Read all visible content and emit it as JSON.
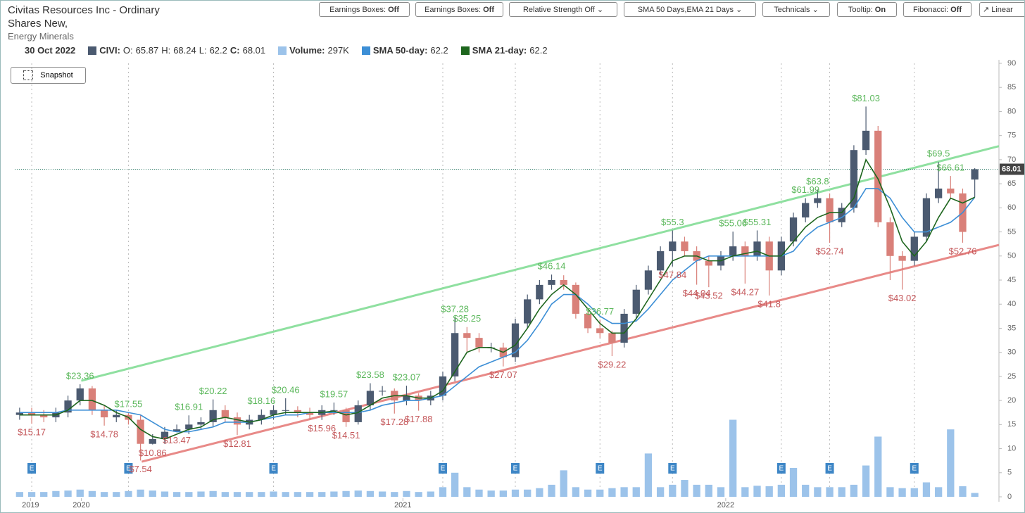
{
  "toolbar": [
    {
      "label": "Earnings Boxes:",
      "state": "Off"
    },
    {
      "label": "Earnings Boxes:",
      "state": "Off"
    },
    {
      "label": "Relative Strength Off"
    },
    {
      "label": "SMA 50 Days,EMA 21 Days"
    },
    {
      "label": "Technicals"
    },
    {
      "label": "Tooltip:",
      "state": "On"
    },
    {
      "label": "Fibonacci:",
      "state": "Off"
    },
    {
      "label": "Linear"
    }
  ],
  "snapshot": "Snapshot",
  "chart_data": {
    "type": "candlestick",
    "title": "Civitas Resources Inc - Ordinary Shares New,",
    "subtitle": "Energy Minerals",
    "date": "30 Oct 2022",
    "symbol": "CIVI:",
    "ohlc_labels": {
      "open": "O:",
      "high": "H:",
      "low": "L:",
      "close": "C:"
    },
    "up_color": "#4b5a70",
    "down_color": "#d98079",
    "open": [
      17,
      17.5,
      17,
      16.5,
      17.5,
      20,
      22.5,
      18,
      16.5,
      17,
      16,
      11,
      12,
      13.5,
      14,
      15,
      15.5,
      18,
      16.5,
      15,
      16,
      17,
      18,
      18,
      17.5,
      17,
      18,
      18,
      15.5,
      19,
      22,
      22,
      20,
      21,
      20,
      21,
      25,
      34,
      33,
      31,
      31,
      29,
      36,
      41,
      44,
      45,
      44,
      38,
      35,
      34,
      32,
      38,
      43,
      47,
      51,
      53,
      51,
      49,
      48,
      50,
      52,
      50,
      53,
      47,
      53,
      58,
      61,
      62,
      57,
      60,
      72,
      76,
      57,
      50,
      49,
      54,
      62,
      64,
      63,
      65.87
    ],
    "high": [
      18.5,
      18.5,
      18,
      18.5,
      21,
      23.36,
      23,
      19,
      18,
      17.55,
      16.9,
      13,
      14.5,
      15,
      16.91,
      16.5,
      20.22,
      19,
      17.5,
      17,
      18.16,
      19,
      20.46,
      18.8,
      18.5,
      19,
      19.57,
      18.5,
      20,
      23.58,
      23,
      22.5,
      23.07,
      21.5,
      22,
      26,
      37.28,
      35.25,
      34,
      32,
      32,
      37,
      42,
      45,
      46.14,
      46,
      44.5,
      38.5,
      36.77,
      34.5,
      39,
      44,
      48,
      52,
      55.3,
      54,
      52,
      50,
      51,
      55.06,
      53,
      55.31,
      54,
      54,
      59,
      61.99,
      63.8,
      63,
      61,
      73,
      81.03,
      77,
      58,
      51,
      55,
      63,
      69.5,
      66.61,
      64,
      68.24
    ],
    "low": [
      16,
      15.17,
      15.5,
      15.5,
      16.5,
      19,
      17,
      14.78,
      15.5,
      15,
      7.54,
      10.86,
      11,
      13.47,
      13,
      14,
      14.5,
      15.5,
      12.81,
      14,
      15,
      16,
      17,
      16.5,
      16,
      15.96,
      17,
      14.51,
      15,
      18,
      21,
      17.28,
      19,
      17.88,
      19,
      20,
      24,
      30,
      30,
      30,
      27.07,
      28,
      35,
      40,
      43,
      43,
      37,
      34,
      33,
      29.22,
      31,
      37,
      42,
      46,
      47.84,
      50,
      44.04,
      43.52,
      47,
      49,
      44.27,
      49,
      41.8,
      46,
      52,
      57,
      60,
      52.74,
      56,
      59,
      71,
      56,
      45,
      43.02,
      48,
      53,
      61,
      62,
      52.76,
      62.2
    ],
    "close": [
      17.5,
      17,
      16.5,
      17.5,
      20,
      22.5,
      18,
      16.5,
      17,
      16,
      11,
      12,
      13.5,
      14,
      15,
      15.5,
      18,
      16.5,
      15,
      16,
      17,
      18,
      18,
      17.5,
      17,
      18,
      18,
      15.5,
      19,
      22,
      22,
      20,
      21,
      20,
      21,
      25,
      34,
      33,
      31,
      31,
      29,
      36,
      41,
      44,
      45,
      44,
      38,
      35,
      34,
      32,
      38,
      43,
      47,
      51,
      53,
      51,
      49,
      48,
      50,
      52,
      50,
      53,
      47,
      53,
      58,
      61,
      62,
      57,
      60,
      72,
      76,
      57,
      50,
      49,
      54,
      62,
      64,
      63,
      55,
      68.01
    ],
    "volume": {
      "name": "Volume:",
      "label": "297K",
      "color": "#9cc3ea",
      "values": [
        1,
        1,
        1,
        1.2,
        1.3,
        1.5,
        1.2,
        1,
        1,
        1.2,
        1.5,
        1.3,
        1.1,
        1,
        1,
        1.1,
        1.2,
        1,
        1,
        1,
        1,
        1.1,
        1,
        1,
        1,
        1,
        1.1,
        1.2,
        1.3,
        1.2,
        1.1,
        1,
        1.2,
        1,
        1.1,
        2,
        5,
        2,
        1.5,
        1.3,
        1.3,
        1.5,
        1.5,
        1.8,
        2.5,
        5.5,
        2,
        1.5,
        1.5,
        1.8,
        2,
        2,
        9,
        2,
        2.5,
        3.5,
        2.5,
        2.5,
        2,
        16,
        2,
        2.3,
        2.2,
        2.5,
        6,
        2.5,
        2,
        2,
        2,
        2.5,
        6.5,
        12.5,
        2,
        1.8,
        1.8,
        3,
        2,
        14,
        2.2,
        0.8
      ]
    },
    "series": [
      {
        "name": "SMA 50-day:",
        "color": "#3d8fd6",
        "values": [
          17.5,
          17.5,
          17.5,
          17.5,
          18,
          18,
          18,
          18,
          18,
          17.5,
          17,
          15.5,
          14,
          13.5,
          13.5,
          14,
          14.5,
          15.5,
          15.5,
          15.5,
          16,
          16.5,
          17,
          17,
          17.5,
          17.5,
          17.5,
          17.5,
          17.5,
          18,
          19,
          19.5,
          20,
          20,
          20.5,
          21,
          23,
          25,
          27,
          28,
          29,
          30,
          32.5,
          36,
          40,
          42,
          42,
          40,
          37.5,
          36,
          36,
          36.5,
          39,
          42,
          45,
          47,
          49,
          50,
          50,
          50,
          50,
          50,
          50,
          50,
          51,
          54,
          56,
          57,
          58,
          60,
          64,
          64,
          62,
          58,
          55,
          55,
          56,
          57,
          59,
          62.2
        ]
      },
      {
        "name": "SMA 21-day:",
        "color": "#1e661e",
        "values": [
          17,
          17,
          17,
          17,
          18,
          20,
          20,
          19,
          17.5,
          16.5,
          14,
          12.5,
          12,
          13,
          14,
          14.5,
          16,
          16.5,
          16,
          15.5,
          16,
          17,
          17.5,
          17.5,
          17.5,
          17.5,
          17.8,
          17,
          17.5,
          19,
          20.5,
          21,
          21,
          20.5,
          20.5,
          22,
          26,
          30,
          31,
          31,
          30,
          31.5,
          35,
          39,
          42,
          44,
          42,
          39,
          36,
          34,
          34,
          37,
          41,
          45,
          49,
          50,
          50,
          49,
          49,
          50,
          50.5,
          51,
          50,
          50,
          53,
          56,
          58,
          59,
          59,
          62,
          70,
          66,
          60,
          53,
          50,
          53,
          58,
          62,
          61,
          62.2
        ]
      }
    ],
    "xlim": [
      -0.4,
      81
    ],
    "xticks": [
      {
        "value": 0.9,
        "label": "2019"
      },
      {
        "value": 5.1,
        "label": "2020"
      },
      {
        "value": 31.7,
        "label": "2021"
      },
      {
        "value": 58.4,
        "label": "2022"
      }
    ],
    "ylim": [
      0,
      90
    ],
    "yticks": [
      0,
      5,
      10,
      15,
      20,
      25,
      30,
      35,
      40,
      45,
      50,
      55,
      60,
      65,
      70,
      75,
      80,
      85,
      90
    ],
    "last_price_color": "#2b7a66",
    "trendlines": [
      {
        "color": "#8fe0a0",
        "points": [
          [
            5.1,
            24.1
          ],
          [
            81,
            72.8
          ]
        ]
      },
      {
        "color": "#e88a88",
        "points": [
          [
            10.1,
            7.3
          ],
          [
            81,
            52.3
          ]
        ]
      }
    ],
    "earnings": {
      "label": "E",
      "x": [
        1,
        9,
        21,
        35,
        41,
        48,
        54,
        63,
        67,
        74
      ]
    },
    "high_annotations": [
      {
        "label": "$23.36",
        "value": 23.36,
        "x": 5
      },
      {
        "label": "$17.55",
        "value": 17.55,
        "x": 9
      },
      {
        "label": "$16.91",
        "value": 16.91,
        "x": 14
      },
      {
        "label": "$20.22",
        "value": 20.22,
        "x": 16
      },
      {
        "label": "$18.16",
        "value": 18.16,
        "x": 20
      },
      {
        "label": "$20.46",
        "value": 20.46,
        "x": 22
      },
      {
        "label": "$19.57",
        "value": 19.57,
        "x": 26
      },
      {
        "label": "$23.58",
        "value": 23.58,
        "x": 29
      },
      {
        "label": "$23.07",
        "value": 23.07,
        "x": 32
      },
      {
        "label": "$37.28",
        "value": 37.28,
        "x": 36
      },
      {
        "label": "$35.25",
        "value": 35.25,
        "x": 37
      },
      {
        "label": "$46.14",
        "value": 46.14,
        "x": 44
      },
      {
        "label": "$36.77",
        "value": 36.77,
        "x": 48
      },
      {
        "label": "$55.3",
        "value": 55.3,
        "x": 54
      },
      {
        "label": "$55.06",
        "value": 55.06,
        "x": 59
      },
      {
        "label": "$55.31",
        "value": 55.31,
        "x": 61
      },
      {
        "label": "$61.99",
        "value": 61.99,
        "x": 65
      },
      {
        "label": "$63.8",
        "value": 63.8,
        "x": 66
      },
      {
        "label": "$81.03",
        "value": 81.03,
        "x": 70
      },
      {
        "label": "$69.5",
        "value": 69.5,
        "x": 76
      },
      {
        "label": "$66.61",
        "value": 66.61,
        "x": 77
      }
    ],
    "low_annotations": [
      {
        "label": "$15.17",
        "value": 15.17,
        "x": 1
      },
      {
        "label": "$14.78",
        "value": 14.78,
        "x": 7
      },
      {
        "label": "$7.54",
        "value": 7.54,
        "x": 10
      },
      {
        "label": "$10.86",
        "value": 10.86,
        "x": 11
      },
      {
        "label": "$13.47",
        "value": 13.47,
        "x": 13
      },
      {
        "label": "$12.81",
        "value": 12.81,
        "x": 18
      },
      {
        "label": "$15.96",
        "value": 15.96,
        "x": 25
      },
      {
        "label": "$14.51",
        "value": 14.51,
        "x": 27
      },
      {
        "label": "$17.28",
        "value": 17.28,
        "x": 31
      },
      {
        "label": "$17.88",
        "value": 17.88,
        "x": 33
      },
      {
        "label": "$27.07",
        "value": 27.07,
        "x": 40
      },
      {
        "label": "$29.22",
        "value": 29.22,
        "x": 49
      },
      {
        "label": "$47.84",
        "value": 47.84,
        "x": 54
      },
      {
        "label": "$44.04",
        "value": 44.04,
        "x": 56
      },
      {
        "label": "$43.52",
        "value": 43.52,
        "x": 57
      },
      {
        "label": "$44.27",
        "value": 44.27,
        "x": 60
      },
      {
        "label": "$41.8",
        "value": 41.8,
        "x": 62
      },
      {
        "label": "$52.74",
        "value": 52.74,
        "x": 67
      },
      {
        "label": "$43.02",
        "value": 43.02,
        "x": 73
      },
      {
        "label": "$52.76",
        "value": 52.76,
        "x": 78
      }
    ]
  }
}
